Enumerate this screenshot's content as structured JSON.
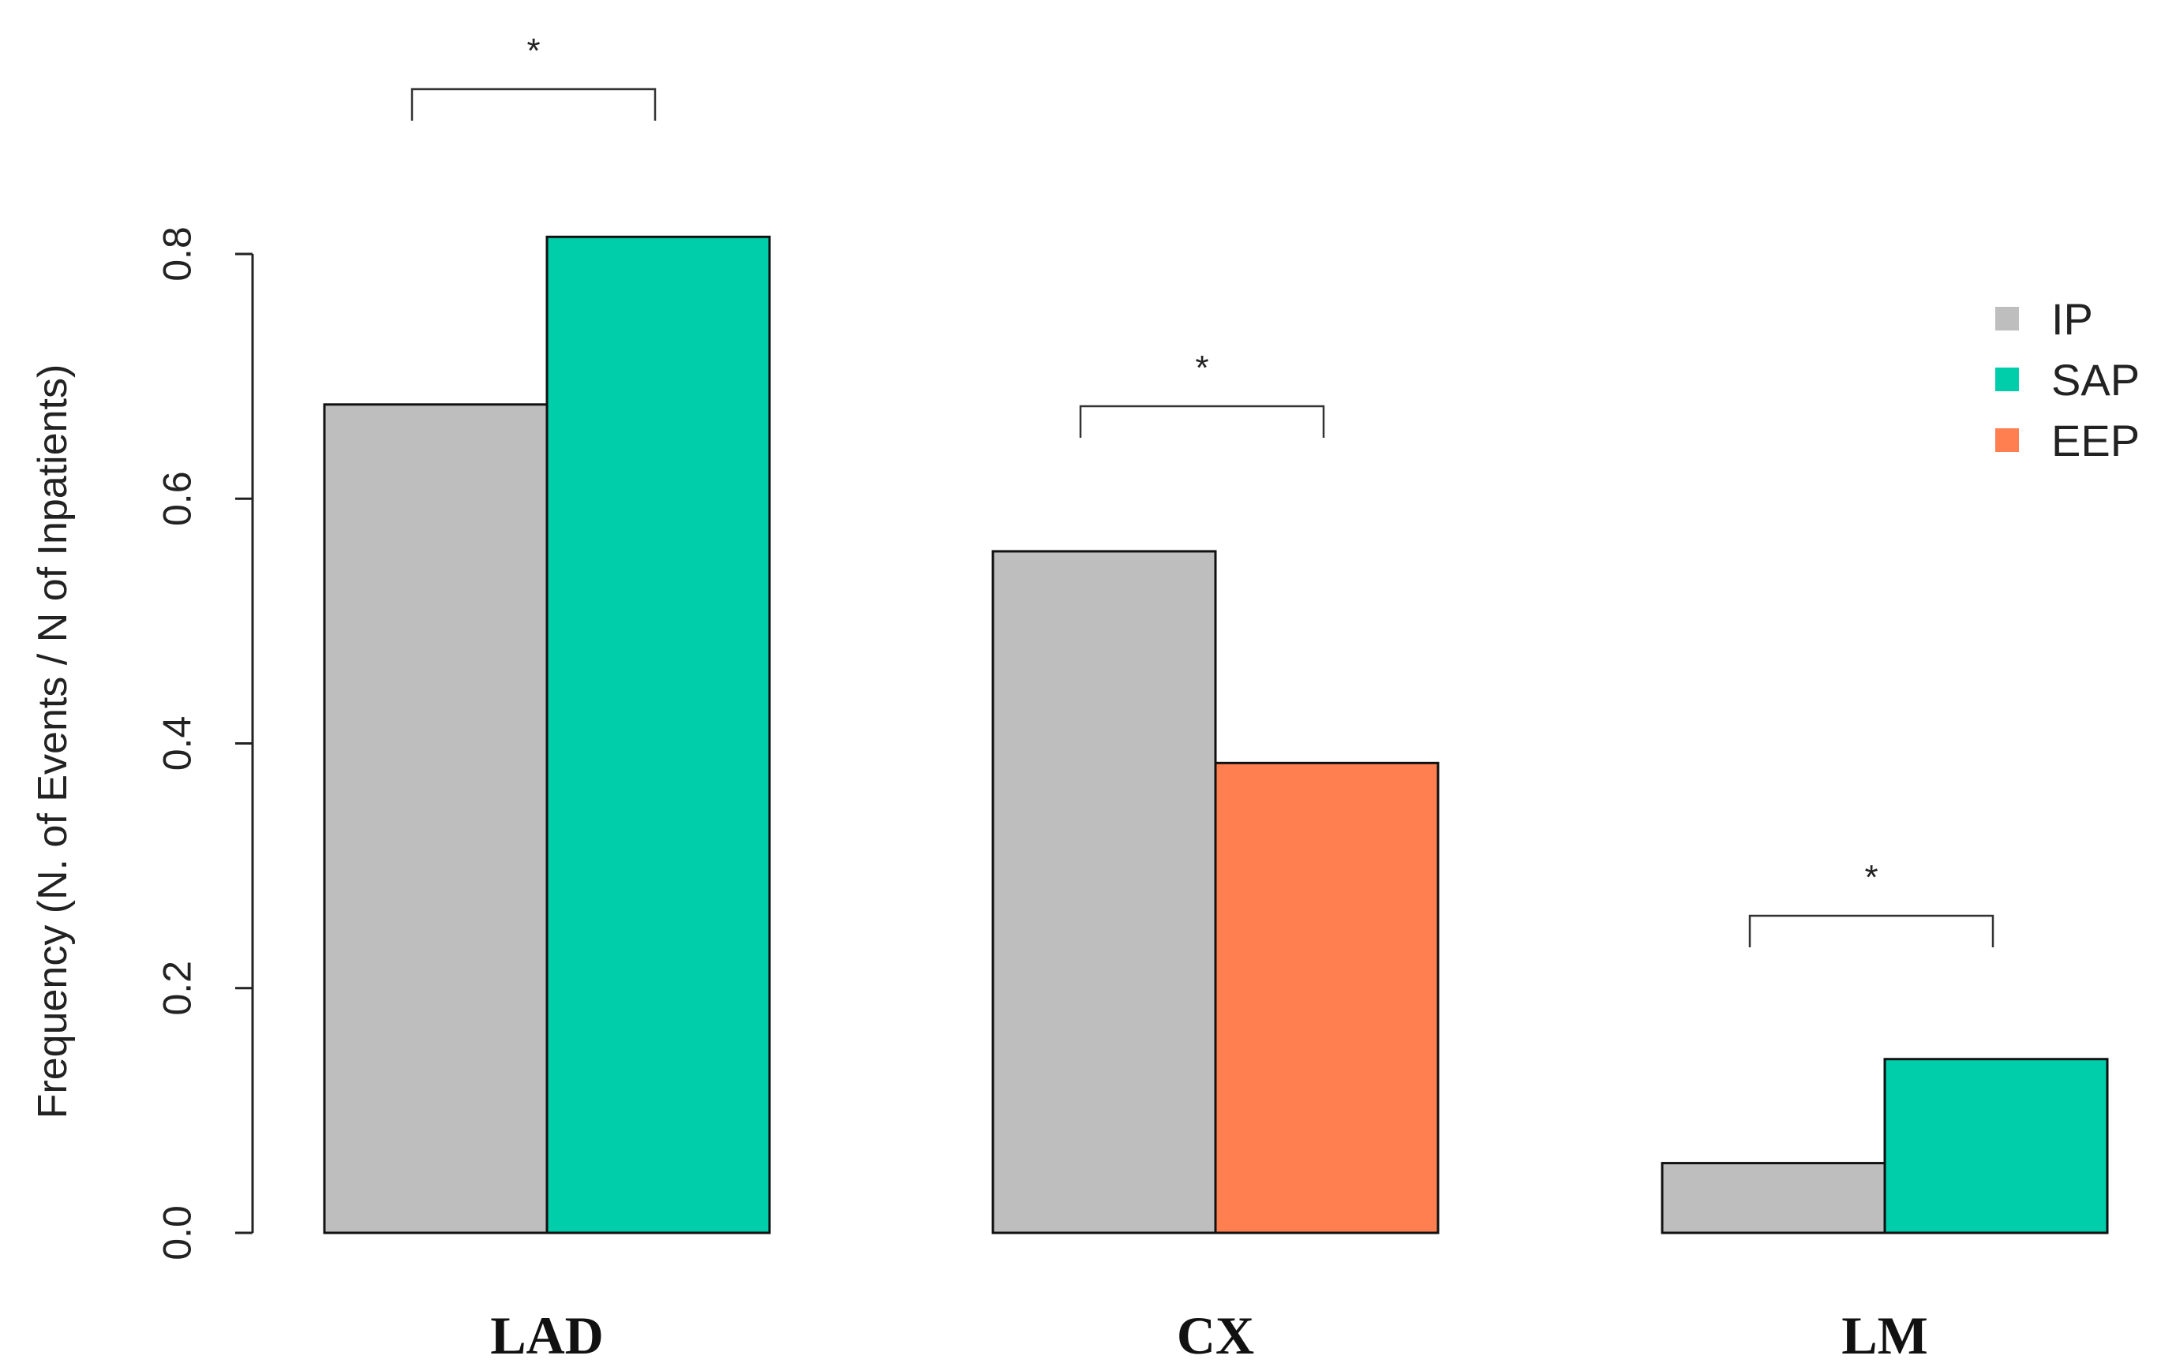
{
  "chart_data": {
    "type": "bar",
    "title": "",
    "xlabel": "",
    "ylabel": "Frequency (N. of Events / N of Inpatients)",
    "ylim": [
      0,
      0.8
    ],
    "yticks": [
      0.0,
      0.2,
      0.4,
      0.6,
      0.8
    ],
    "ytick_labels": [
      "0.0",
      "0.2",
      "0.4",
      "0.6",
      "0.8"
    ],
    "grid": false,
    "legend_position": "top-right",
    "legend": [
      {
        "key": "IP",
        "label": "IP",
        "color": "#bebebe"
      },
      {
        "key": "SAP",
        "label": "SAP",
        "color": "#00cdaa"
      },
      {
        "key": "EEP",
        "label": "EEP",
        "color": "#ff7f50"
      }
    ],
    "groups": [
      {
        "category": "LAD",
        "bars": [
          {
            "series": "IP",
            "value": 0.677
          },
          {
            "series": "SAP",
            "value": 0.814
          }
        ],
        "significance": "*"
      },
      {
        "category": "CX",
        "bars": [
          {
            "series": "IP",
            "value": 0.557
          },
          {
            "series": "EEP",
            "value": 0.384
          }
        ],
        "significance": "*"
      },
      {
        "category": "LM",
        "bars": [
          {
            "series": "IP",
            "value": 0.057
          },
          {
            "series": "SAP",
            "value": 0.142
          }
        ],
        "significance": "*"
      }
    ]
  }
}
